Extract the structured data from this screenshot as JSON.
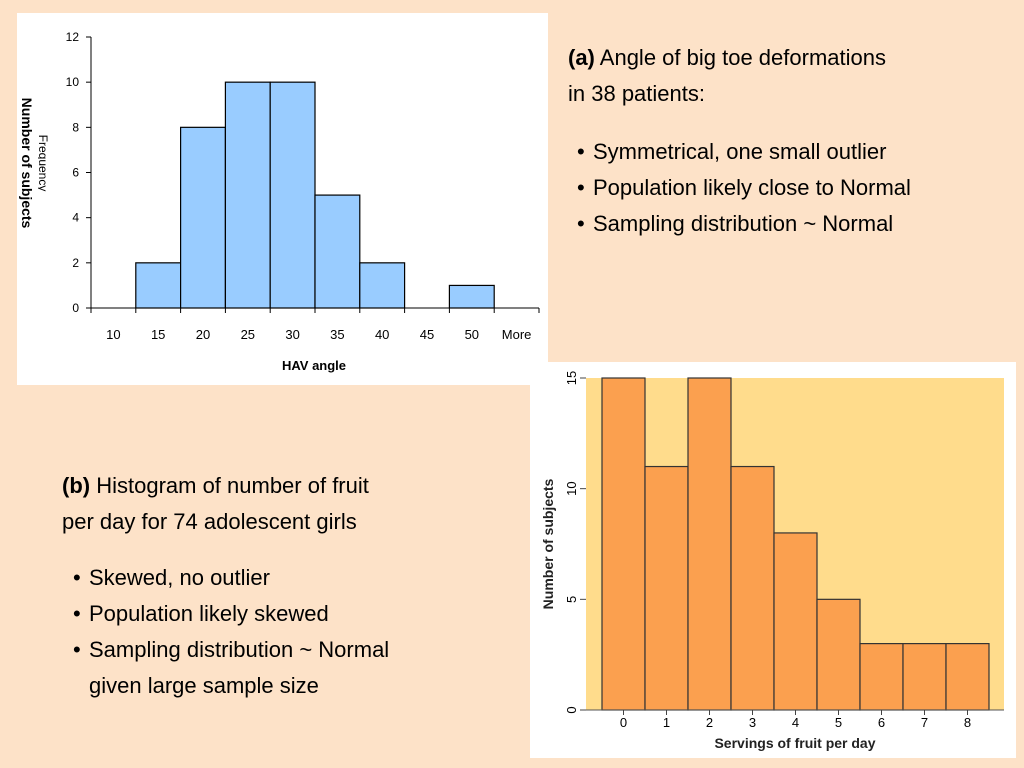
{
  "text_a": {
    "label": "(a)",
    "line1": " Angle of big toe deformations",
    "line2": "in 38 patients:",
    "bullets": [
      "Symmetrical, one small outlier",
      "Population likely close to Normal",
      "Sampling distribution ~ Normal"
    ]
  },
  "text_b": {
    "label": "(b)",
    "line1": " Histogram of number of fruit",
    "line2": "per day for 74 adolescent girls",
    "bullets": [
      "Skewed, no outlier",
      "Population likely skewed",
      "Sampling distribution ~ Normal given large sample size"
    ],
    "bullet3_line1": "Sampling distribution ~ Normal",
    "bullet3_line2": "given large sample size"
  },
  "bullet_glyph": "•",
  "chart_data": [
    {
      "type": "bar",
      "categories": [
        "10",
        "15",
        "20",
        "25",
        "30",
        "35",
        "40",
        "45",
        "50",
        "More"
      ],
      "values": [
        0,
        2,
        8,
        10,
        10,
        5,
        2,
        0,
        1,
        0
      ],
      "xlabel": "HAV angle",
      "ylabel": "Number of subjects",
      "ylabel_ghost": "Frequency",
      "ylim": [
        0,
        12
      ],
      "yticks": [
        "0",
        "2",
        "4",
        "6",
        "8",
        "10",
        "12"
      ],
      "grid": false,
      "bar_color": "#99ccff",
      "background": "#ffffff"
    },
    {
      "type": "bar",
      "categories": [
        "0",
        "1",
        "2",
        "3",
        "4",
        "5",
        "6",
        "7",
        "8"
      ],
      "values": [
        15,
        11,
        15,
        11,
        8,
        5,
        3,
        3,
        3
      ],
      "xlabel": "Servings of fruit per day",
      "ylabel": "Number of subjects",
      "ylim": [
        0,
        15
      ],
      "yticks": [
        "0",
        "5",
        "10",
        "15"
      ],
      "grid": false,
      "bar_color": "#fba04f",
      "background": "#ffdc8c"
    }
  ]
}
